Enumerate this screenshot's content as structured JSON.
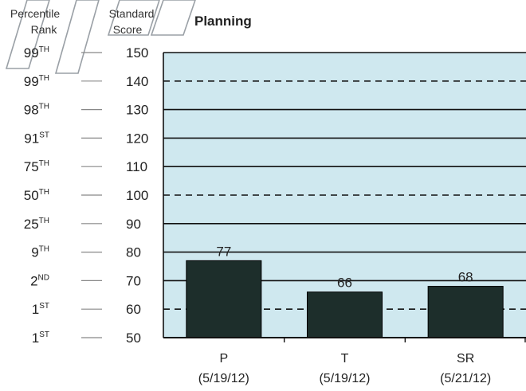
{
  "chart_data": {
    "type": "bar",
    "title": "Planning",
    "left_header": {
      "line1": "Percentile",
      "line2": "Rank"
    },
    "right_header": {
      "line1": "Standard",
      "line2": "Score"
    },
    "ylim": [
      50,
      150
    ],
    "yticks": [
      {
        "score": 150,
        "rank": "99",
        "suffix": "TH"
      },
      {
        "score": 140,
        "rank": "99",
        "suffix": "TH"
      },
      {
        "score": 130,
        "rank": "98",
        "suffix": "TH"
      },
      {
        "score": 120,
        "rank": "91",
        "suffix": "ST"
      },
      {
        "score": 110,
        "rank": "75",
        "suffix": "TH"
      },
      {
        "score": 100,
        "rank": "50",
        "suffix": "TH"
      },
      {
        "score": 90,
        "rank": "25",
        "suffix": "TH"
      },
      {
        "score": 80,
        "rank": "9",
        "suffix": "TH"
      },
      {
        "score": 70,
        "rank": "2",
        "suffix": "ND"
      },
      {
        "score": 60,
        "rank": "1",
        "suffix": "ST"
      },
      {
        "score": 50,
        "rank": "1",
        "suffix": "ST"
      }
    ],
    "dashed_lines_at": [
      140,
      100,
      60
    ],
    "categories": [
      "P",
      "T",
      "SR"
    ],
    "category_dates": [
      "(5/19/12)",
      "(5/19/12)",
      "(5/21/12)"
    ],
    "values": [
      77,
      66,
      68
    ],
    "colors": {
      "plot_bg": "#cfe8ef",
      "bar": "#1d2e2b",
      "line": "#111111"
    }
  }
}
